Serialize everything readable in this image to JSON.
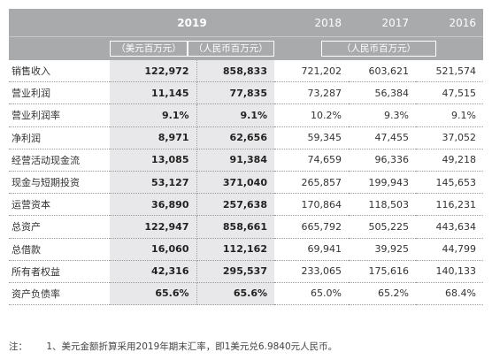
{
  "header": {
    "year_2019": "2019",
    "year_2018": "2018",
    "year_2017": "2017",
    "year_2016": "2016",
    "unit_usd": "（美元百万元）",
    "unit_rmb_2019": "（人民币百万元）",
    "unit_rmb_prior": "（人民币百万元）"
  },
  "rows": [
    {
      "label": "销售收入",
      "usd_2019": "122,972",
      "rmb_2019": "858,833",
      "y2018": "721,202",
      "y2017": "603,621",
      "y2016": "521,574"
    },
    {
      "label": "营业利润",
      "usd_2019": "11,145",
      "rmb_2019": "77,835",
      "y2018": "73,287",
      "y2017": "56,384",
      "y2016": "47,515"
    },
    {
      "label": "营业利润率",
      "usd_2019": "9.1%",
      "rmb_2019": "9.1%",
      "y2018": "10.2%",
      "y2017": "9.3%",
      "y2016": "9.1%"
    },
    {
      "label": "净利润",
      "usd_2019": "8,971",
      "rmb_2019": "62,656",
      "y2018": "59,345",
      "y2017": "47,455",
      "y2016": "37,052"
    },
    {
      "label": "经营活动现金流",
      "usd_2019": "13,085",
      "rmb_2019": "91,384",
      "y2018": "74,659",
      "y2017": "96,336",
      "y2016": "49,218"
    },
    {
      "label": "现金与短期投资",
      "usd_2019": "53,127",
      "rmb_2019": "371,040",
      "y2018": "265,857",
      "y2017": "199,943",
      "y2016": "145,653"
    },
    {
      "label": "运营资本",
      "usd_2019": "36,890",
      "rmb_2019": "257,638",
      "y2018": "170,864",
      "y2017": "118,503",
      "y2016": "116,231"
    },
    {
      "label": "总资产",
      "usd_2019": "122,947",
      "rmb_2019": "858,661",
      "y2018": "665,792",
      "y2017": "505,225",
      "y2016": "443,634"
    },
    {
      "label": "总借款",
      "usd_2019": "16,060",
      "rmb_2019": "112,162",
      "y2018": "69,941",
      "y2017": "39,925",
      "y2016": "44,799"
    },
    {
      "label": "所有者权益",
      "usd_2019": "42,316",
      "rmb_2019": "295,537",
      "y2018": "233,065",
      "y2017": "175,616",
      "y2016": "140,133"
    },
    {
      "label": "资产负债率",
      "usd_2019": "65.6%",
      "rmb_2019": "65.6%",
      "y2018": "65.0%",
      "y2017": "65.2%",
      "y2016": "68.4%"
    }
  ],
  "note": {
    "prefix": "注：",
    "text": "1、美元金额折算采用2019年期末汇率，即1美元兑6.9840元人民币。"
  }
}
